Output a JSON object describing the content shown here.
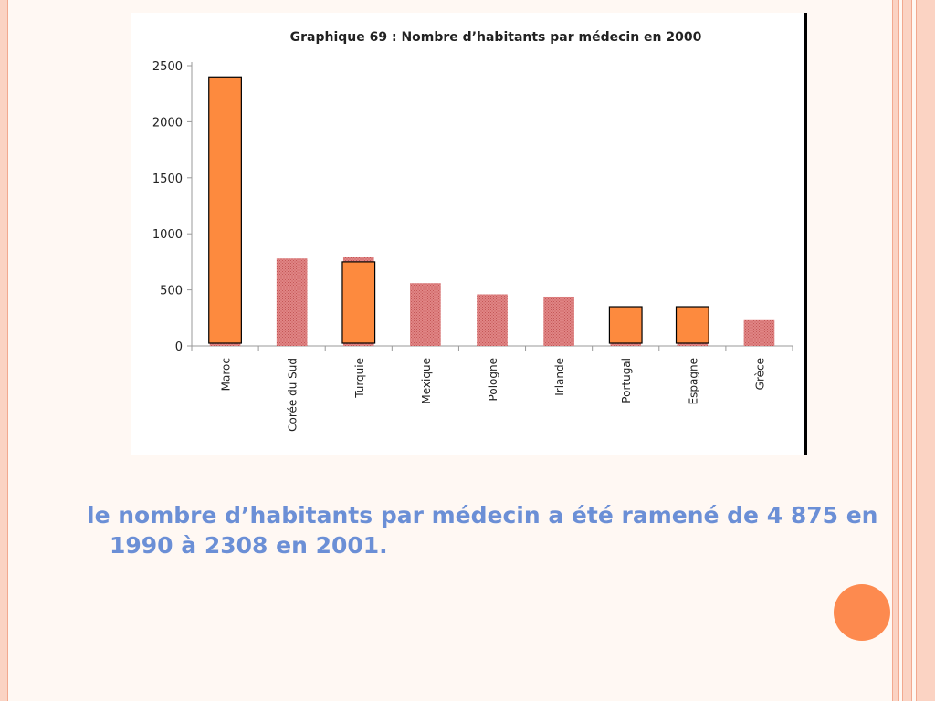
{
  "chart_data": {
    "type": "bar",
    "title": "Graphique 69 : Nombre d’habitants par médecin en 2000",
    "categories": [
      "Maroc",
      "Corée du Sud",
      "Turquie",
      "Mexique",
      "Pologne",
      "Irlande",
      "Portugal",
      "Espagne",
      "Grèce"
    ],
    "series": [
      {
        "values": [
          2400,
          780,
          790,
          560,
          460,
          440,
          310,
          310,
          230
        ]
      },
      {
        "values": [
          2400,
          null,
          750,
          null,
          null,
          null,
          350,
          350,
          null
        ]
      }
    ],
    "ylim": [
      0,
      2500
    ],
    "yticks": [
      0,
      500,
      1000,
      1500,
      2000,
      2500
    ],
    "colors": {
      "background_bars": "#d66e6e",
      "highlight_bars": "#fd8a3e",
      "highlight_outline": "#000000"
    }
  },
  "caption": {
    "text": "le nombre d’habitants par médecin a été ramené de 4 875 en 1990 à 2308 en 2001."
  },
  "theme": {
    "accent": "#fd8a4f",
    "caption_color": "#6b8fd6"
  }
}
